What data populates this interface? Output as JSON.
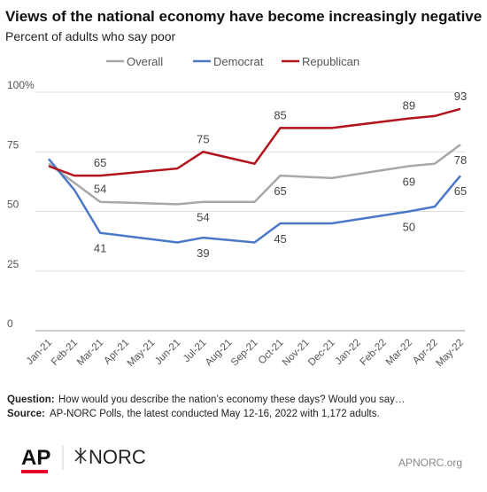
{
  "chart_data": {
    "type": "line",
    "title": "Views of the national economy have become increasingly negative",
    "subtitle": "Percent of adults who say poor",
    "xticks": [
      "Jan-21",
      "Feb-21",
      "Mar-21",
      "Apr-21",
      "May-21",
      "Jun-21",
      "Jul-21",
      "Aug-21",
      "Sep-21",
      "Oct-21",
      "Nov-21",
      "Dec-21",
      "Jan-22",
      "Feb-22",
      "Mar-22",
      "Apr-22",
      "May-22"
    ],
    "x": [
      "Jan-21",
      "Feb-21",
      "Mar-21",
      "Jun-21",
      "Jul-21",
      "Sep-21",
      "Oct-21",
      "Dec-21",
      "Mar-22",
      "Apr-22",
      "May-22"
    ],
    "series": [
      {
        "name": "Overall",
        "color": "#a8a8a8",
        "values": [
          70,
          62,
          54,
          53,
          54,
          54,
          65,
          64,
          69,
          70,
          78
        ],
        "value_labels": [
          null,
          null,
          54,
          null,
          54,
          null,
          65,
          null,
          69,
          null,
          78
        ]
      },
      {
        "name": "Democrat",
        "color": "#4a78c6",
        "values": [
          72,
          59,
          41,
          37,
          39,
          37,
          45,
          45,
          50,
          52,
          65
        ],
        "value_labels": [
          null,
          null,
          41,
          null,
          39,
          null,
          45,
          null,
          50,
          null,
          65
        ]
      },
      {
        "name": "Republican",
        "color": "#b3131b",
        "values": [
          69,
          65,
          65,
          68,
          75,
          70,
          85,
          85,
          89,
          90,
          93
        ],
        "value_labels": [
          null,
          null,
          65,
          null,
          75,
          null,
          85,
          null,
          89,
          null,
          93
        ]
      }
    ],
    "ylim": [
      0,
      100
    ],
    "yticks": [
      0,
      25,
      50,
      75,
      {
        "value": 100,
        "label": "100%"
      }
    ],
    "grid": true,
    "legend": "top"
  },
  "notes": {
    "question_label": "Question:",
    "question": "How would you describe the nation’s economy these days? Would you say…",
    "source_label": "Source:",
    "source": "AP-NORC Polls, the latest conducted May 12-16, 2022 with 1,172 adults."
  },
  "footer": {
    "logo_ap": "AP",
    "logo_norc": "NORC",
    "url": "APNORC.org"
  }
}
